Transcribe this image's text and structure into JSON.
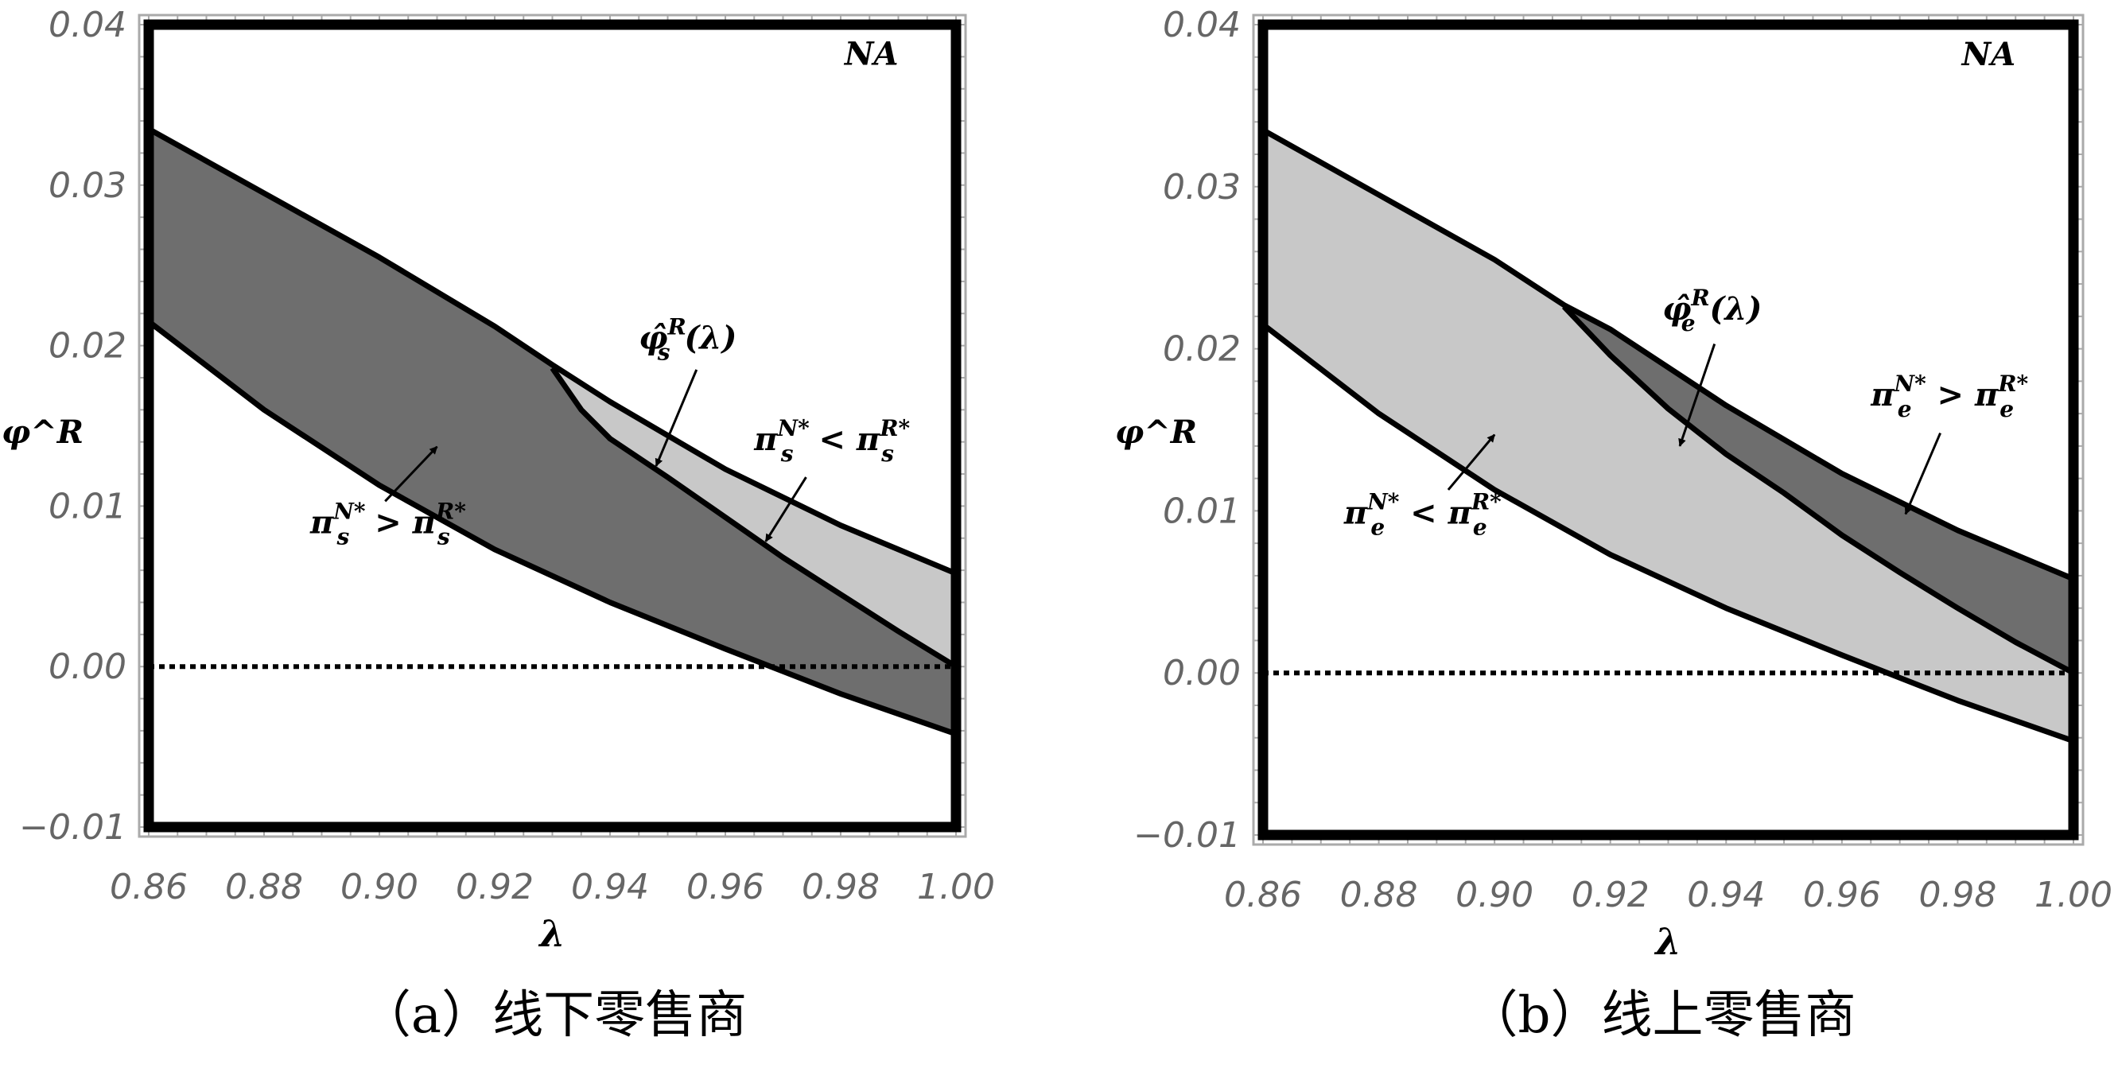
{
  "chart_data": [
    {
      "type": "area",
      "caption": "（a）线下零售商",
      "xlabel": "λ",
      "ylabel": "φ^R",
      "xlim": [
        0.86,
        1.0
      ],
      "ylim": [
        -0.01,
        0.04
      ],
      "xticks": [
        "0.86",
        "0.88",
        "0.90",
        "0.92",
        "0.94",
        "0.96",
        "0.98",
        "1.00"
      ],
      "yticks": [
        "0.04",
        "0.03",
        "0.02",
        "0.01",
        "0.00",
        "−0.01"
      ],
      "region_label": "NA",
      "upper": {
        "x": [
          0.86,
          0.88,
          0.9,
          0.92,
          0.93,
          0.94,
          0.96,
          0.98,
          1.0
        ],
        "y": [
          0.0335,
          0.0295,
          0.0255,
          0.0212,
          0.0188,
          0.0165,
          0.0123,
          0.0088,
          0.0058
        ]
      },
      "lower": {
        "x": [
          0.86,
          0.88,
          0.9,
          0.92,
          0.94,
          0.96,
          0.98,
          1.0
        ],
        "y": [
          0.0215,
          0.016,
          0.0113,
          0.0073,
          0.004,
          0.0011,
          -0.0017,
          -0.0042
        ]
      },
      "threshold": {
        "name": "φ̂_s^R(λ)",
        "x": [
          0.93,
          0.935,
          0.94,
          0.95,
          0.96,
          0.97,
          0.98,
          0.99,
          1.0
        ],
        "y": [
          0.0186,
          0.016,
          0.0142,
          0.0118,
          0.0093,
          0.0068,
          0.0045,
          0.0022,
          0.0
        ]
      },
      "fill_band": "#6e6e6e",
      "fill_above_threshold": "#c8c8c8",
      "reference_line_y": 0,
      "annotations": [
        {
          "parts": [
            [
              "φ̂",
              ""
            ],
            [
              "R",
              "sup"
            ],
            [
              "s",
              "sub"
            ],
            [
              "(λ)",
              ""
            ]
          ],
          "at": [
            0.945,
            0.0198
          ],
          "arrow": [
            [
              0.955,
              0.0185
            ],
            [
              0.948,
              0.0125
            ]
          ]
        },
        {
          "parts": [
            [
              "π",
              ""
            ],
            [
              "N*",
              "sup"
            ],
            [
              "s",
              "sub"
            ],
            [
              " < π",
              ""
            ],
            [
              "R*",
              "sup"
            ],
            [
              "s",
              "sub"
            ]
          ],
          "at": [
            0.965,
            0.0135
          ],
          "arrow": [
            [
              0.974,
              0.0118
            ],
            [
              0.967,
              0.0078
            ]
          ]
        },
        {
          "parts": [
            [
              "π",
              ""
            ],
            [
              "N*",
              "sup"
            ],
            [
              "s",
              "sub"
            ],
            [
              " > π",
              ""
            ],
            [
              "R*",
              "sup"
            ],
            [
              "s",
              "sub"
            ]
          ],
          "at": [
            0.888,
            0.0083
          ],
          "arrow": [
            [
              0.901,
              0.0103
            ],
            [
              0.91,
              0.0137
            ]
          ]
        }
      ]
    },
    {
      "type": "area",
      "caption": "（b）线上零售商",
      "xlabel": "λ",
      "ylabel": "φ^R",
      "xlim": [
        0.86,
        1.0
      ],
      "ylim": [
        -0.01,
        0.04
      ],
      "xticks": [
        "0.86",
        "0.88",
        "0.90",
        "0.92",
        "0.94",
        "0.96",
        "0.98",
        "1.00"
      ],
      "yticks": [
        "0.04",
        "0.03",
        "0.02",
        "0.01",
        "0.00",
        "−0.01"
      ],
      "region_label": "NA",
      "upper": {
        "x": [
          0.86,
          0.88,
          0.9,
          0.912,
          0.92,
          0.94,
          0.96,
          0.98,
          1.0
        ],
        "y": [
          0.0335,
          0.0295,
          0.0255,
          0.0227,
          0.0212,
          0.0165,
          0.0123,
          0.0088,
          0.0058
        ]
      },
      "lower": {
        "x": [
          0.86,
          0.88,
          0.9,
          0.92,
          0.94,
          0.96,
          0.98,
          1.0
        ],
        "y": [
          0.0215,
          0.016,
          0.0113,
          0.0073,
          0.004,
          0.0011,
          -0.0017,
          -0.0042
        ]
      },
      "threshold": {
        "name": "φ̂_e^R(λ)",
        "x": [
          0.912,
          0.92,
          0.93,
          0.94,
          0.95,
          0.96,
          0.97,
          0.98,
          0.99,
          1.0
        ],
        "y": [
          0.0226,
          0.0196,
          0.0163,
          0.0135,
          0.0111,
          0.0085,
          0.0062,
          0.004,
          0.0019,
          0.0
        ]
      },
      "fill_band": "#c8c8c8",
      "fill_above_threshold": "#6e6e6e",
      "reference_line_y": 0,
      "annotations": [
        {
          "parts": [
            [
              "φ̂",
              ""
            ],
            [
              "R",
              "sup"
            ],
            [
              "e",
              "sub"
            ],
            [
              "(λ)",
              ""
            ]
          ],
          "at": [
            0.929,
            0.0218
          ],
          "arrow": [
            [
              0.938,
              0.0203
            ],
            [
              0.932,
              0.014
            ]
          ]
        },
        {
          "parts": [
            [
              "π",
              ""
            ],
            [
              "N*",
              "sup"
            ],
            [
              "e",
              "sub"
            ],
            [
              " > π",
              ""
            ],
            [
              "R*",
              "sup"
            ],
            [
              "e",
              "sub"
            ]
          ],
          "at": [
            0.965,
            0.0165
          ],
          "arrow": [
            [
              0.977,
              0.0148
            ],
            [
              0.971,
              0.0098
            ]
          ]
        },
        {
          "parts": [
            [
              "π",
              ""
            ],
            [
              "N*",
              "sup"
            ],
            [
              "e",
              "sub"
            ],
            [
              " < π",
              ""
            ],
            [
              "R*",
              "sup"
            ],
            [
              "e",
              "sub"
            ]
          ],
          "at": [
            0.874,
            0.0092
          ],
          "arrow": [
            [
              0.892,
              0.0113
            ],
            [
              0.9,
              0.0147
            ]
          ]
        }
      ]
    }
  ]
}
